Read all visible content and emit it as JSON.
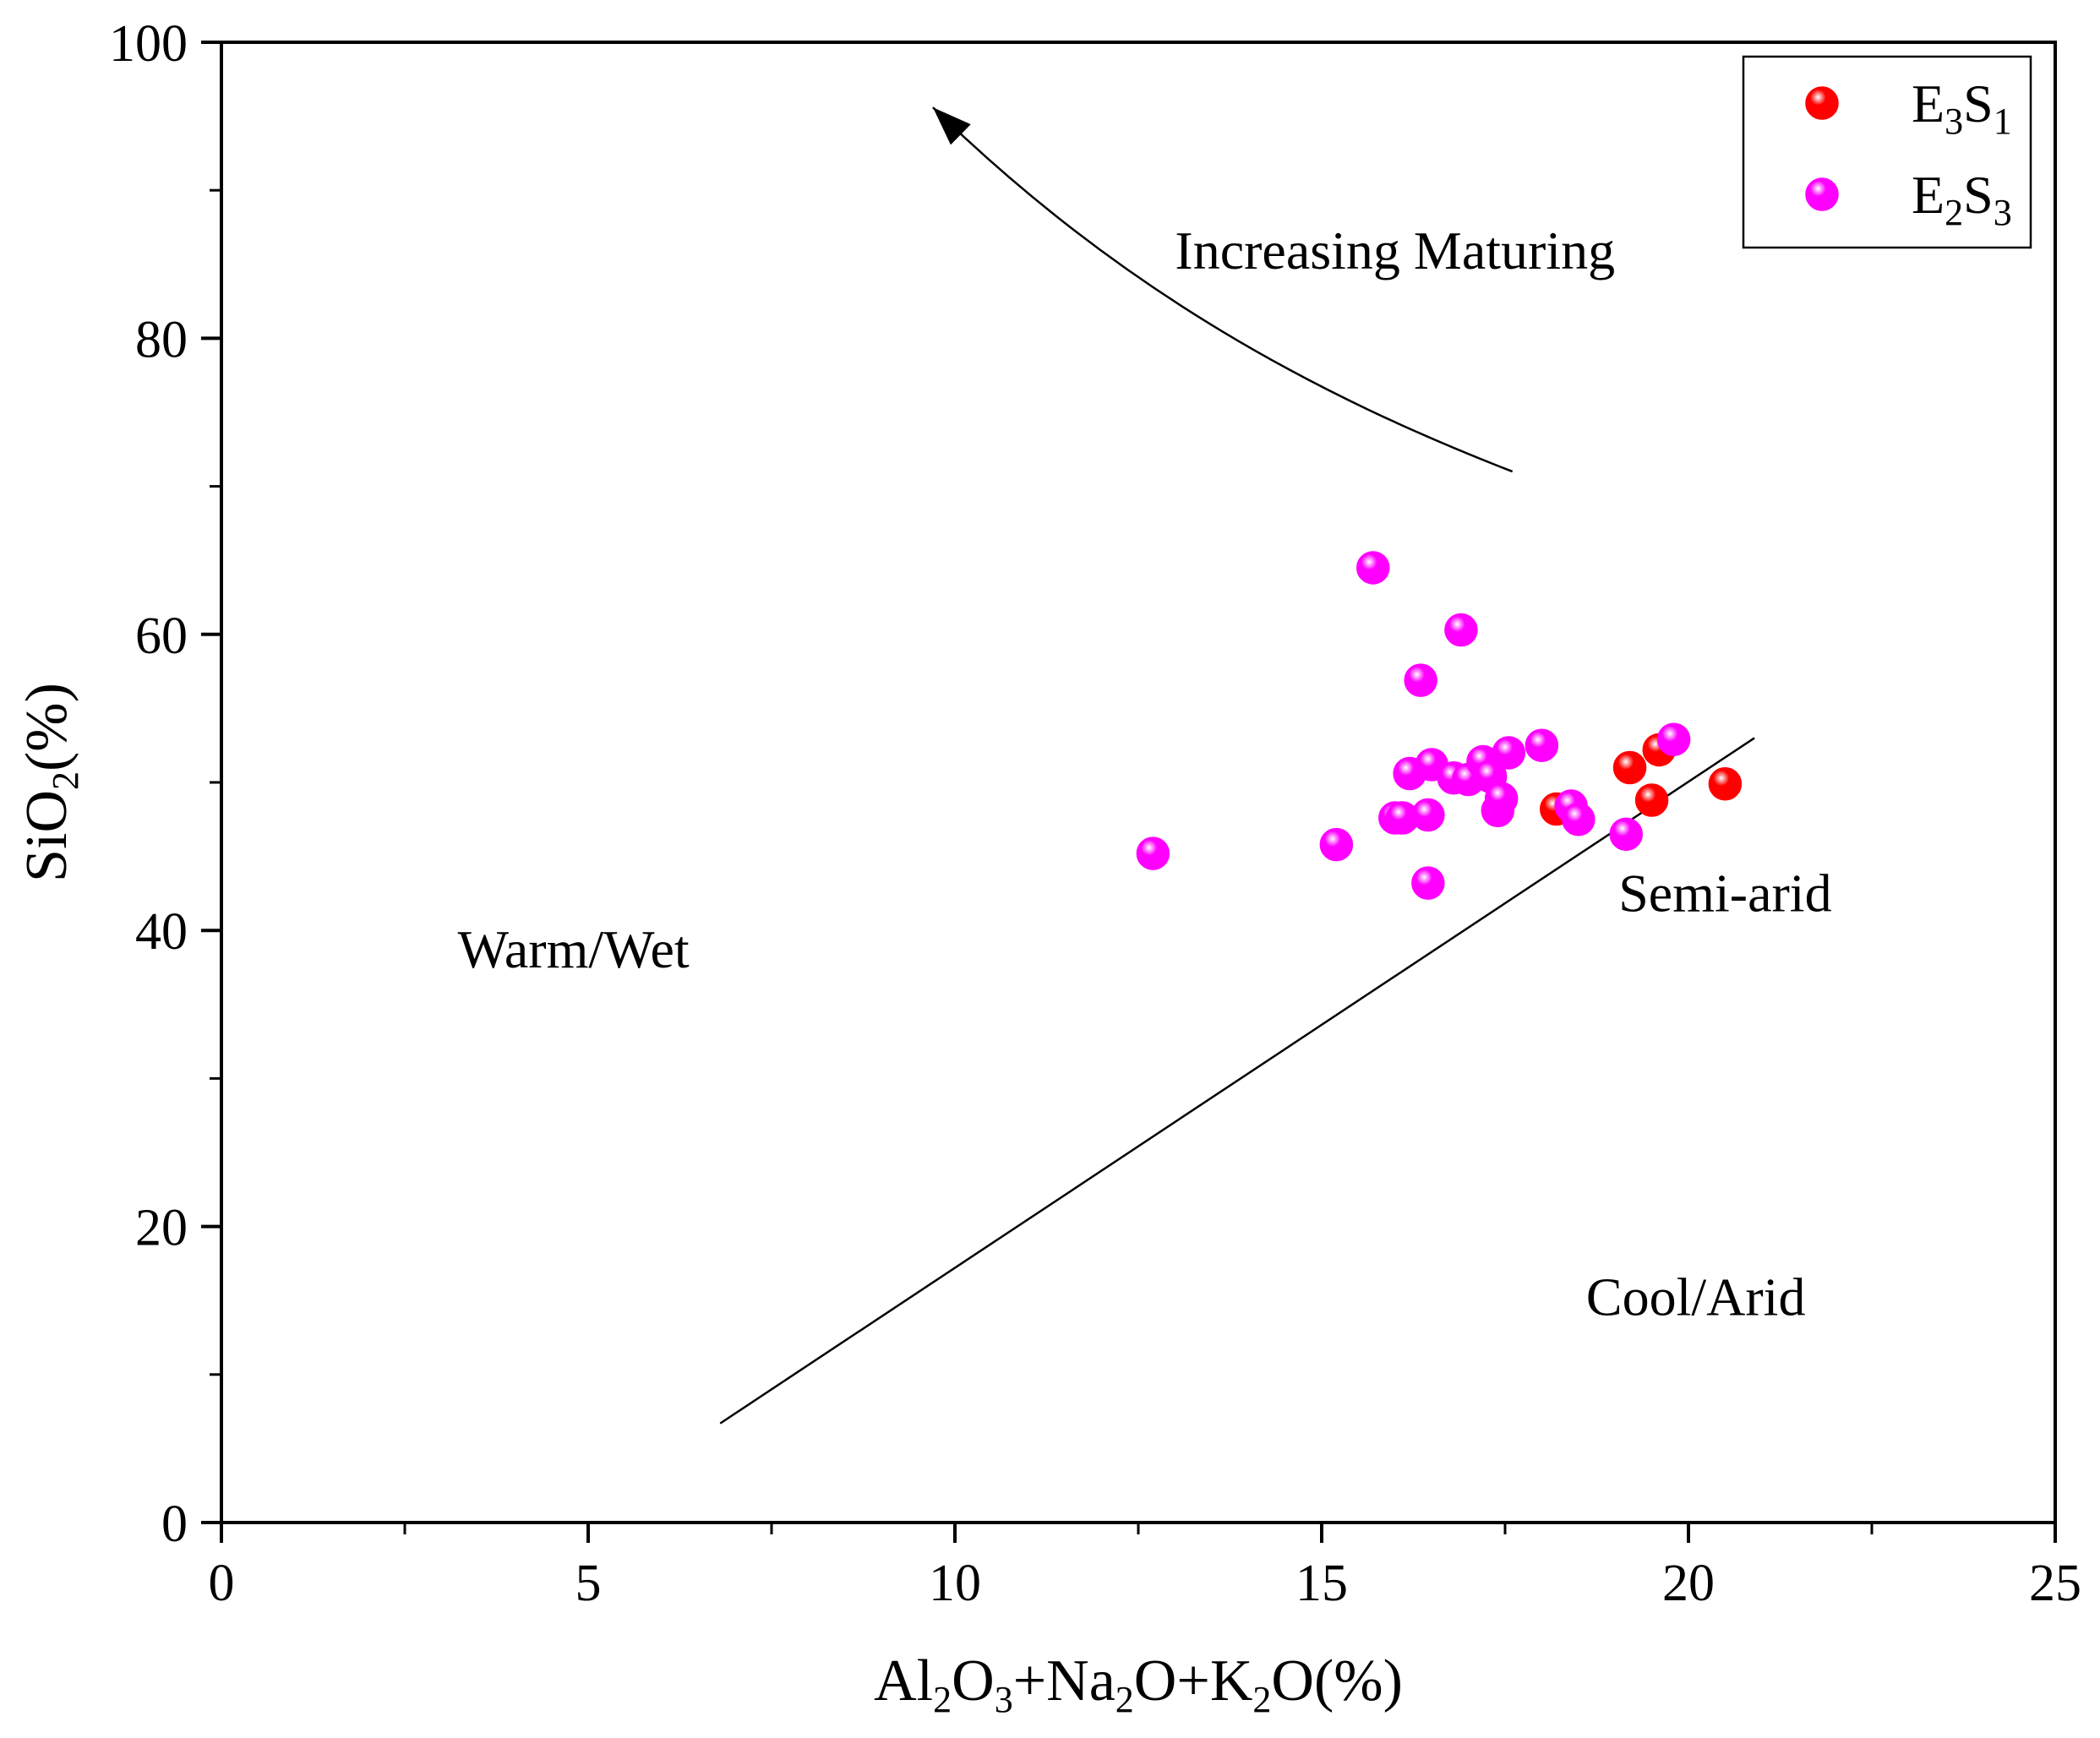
{
  "chart_data": {
    "type": "scatter",
    "xlabel": {
      "parts": [
        [
          "Al",
          ""
        ],
        [
          "2",
          "sub"
        ],
        [
          "O",
          ""
        ],
        [
          "3",
          "sub"
        ],
        [
          "+Na",
          ""
        ],
        [
          "2",
          "sub"
        ],
        [
          "O+K",
          ""
        ],
        [
          "2",
          "sub"
        ],
        [
          "O(%)",
          ""
        ]
      ]
    },
    "ylabel": {
      "parts": [
        [
          "SiO",
          ""
        ],
        [
          "2",
          "sub"
        ],
        [
          "(%)",
          ""
        ]
      ]
    },
    "xlim": [
      0,
      25
    ],
    "ylim": [
      0,
      100
    ],
    "x_ticks": [
      0,
      5,
      10,
      15,
      20,
      25
    ],
    "y_ticks": [
      0,
      20,
      40,
      60,
      80,
      100
    ],
    "grid": false,
    "legend_position": "top-right",
    "series": [
      {
        "name_parts": [
          [
            "E",
            ""
          ],
          [
            "3",
            "sub"
          ],
          [
            "S",
            ""
          ],
          [
            "1",
            "sub"
          ]
        ],
        "color": "#ff0000",
        "points": [
          [
            18.2,
            48.2
          ],
          [
            19.2,
            51.0
          ],
          [
            19.5,
            48.8
          ],
          [
            19.6,
            52.2
          ],
          [
            20.5,
            49.9
          ]
        ]
      },
      {
        "name_parts": [
          [
            "E",
            ""
          ],
          [
            "2",
            "sub"
          ],
          [
            "S",
            ""
          ],
          [
            "3",
            "sub"
          ]
        ],
        "color": "#ff00ff",
        "points": [
          [
            12.7,
            45.2
          ],
          [
            15.2,
            45.8
          ],
          [
            15.7,
            64.5
          ],
          [
            16.0,
            47.6
          ],
          [
            16.1,
            47.6
          ],
          [
            16.2,
            50.6
          ],
          [
            16.35,
            56.9
          ],
          [
            16.45,
            43.2
          ],
          [
            16.45,
            47.8
          ],
          [
            16.5,
            51.2
          ],
          [
            16.8,
            50.3
          ],
          [
            16.9,
            60.3
          ],
          [
            17.0,
            50.2
          ],
          [
            17.2,
            51.4
          ],
          [
            17.3,
            50.4
          ],
          [
            17.4,
            48.1
          ],
          [
            17.45,
            48.9
          ],
          [
            17.55,
            52.0
          ],
          [
            18.0,
            52.5
          ],
          [
            18.4,
            48.4
          ],
          [
            18.5,
            47.5
          ],
          [
            19.15,
            46.5
          ],
          [
            19.8,
            52.9
          ]
        ]
      }
    ],
    "boundary_line": [
      [
        6.8,
        6.7
      ],
      [
        20.9,
        53.0
      ]
    ],
    "maturity_arrow": {
      "label": "Increasing Maturing",
      "path": [
        [
          17.6,
          71.0
        ],
        [
          15.0,
          76.0
        ],
        [
          12.3,
          83.0
        ],
        [
          9.7,
          95.6
        ]
      ]
    },
    "region_labels": [
      {
        "text": "Warm/Wet",
        "x": 4.8,
        "y": 37.5
      },
      {
        "text": "Semi-arid",
        "x": 20.5,
        "y": 41.3
      },
      {
        "text": "Cool/Arid",
        "x": 20.1,
        "y": 14.0
      }
    ]
  }
}
